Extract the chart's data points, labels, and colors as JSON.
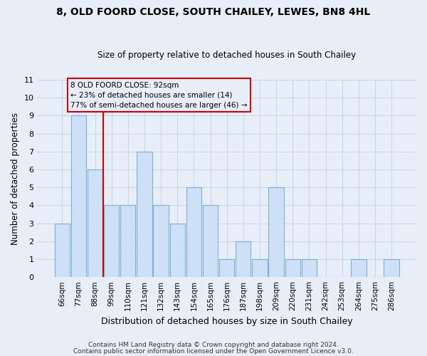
{
  "title": "8, OLD FOORD CLOSE, SOUTH CHAILEY, LEWES, BN8 4HL",
  "subtitle": "Size of property relative to detached houses in South Chailey",
  "xlabel": "Distribution of detached houses by size in South Chailey",
  "ylabel": "Number of detached properties",
  "bar_labels": [
    "66sqm",
    "77sqm",
    "88sqm",
    "99sqm",
    "110sqm",
    "121sqm",
    "132sqm",
    "143sqm",
    "154sqm",
    "165sqm",
    "176sqm",
    "187sqm",
    "198sqm",
    "209sqm",
    "220sqm",
    "231sqm",
    "242sqm",
    "253sqm",
    "264sqm",
    "275sqm",
    "286sqm"
  ],
  "bar_values": [
    3,
    9,
    6,
    4,
    4,
    7,
    4,
    3,
    5,
    4,
    1,
    2,
    1,
    5,
    1,
    1,
    0,
    0,
    1,
    0,
    1
  ],
  "bar_color": "#cde0f5",
  "bar_edge_color": "#7bafd4",
  "vline_after_index": 2,
  "vline_color": "#cc0000",
  "ylim_max": 11,
  "annotation_title": "8 OLD FOORD CLOSE: 92sqm",
  "annotation_line1": "← 23% of detached houses are smaller (14)",
  "annotation_line2": "77% of semi-detached houses are larger (46) →",
  "annotation_box_edge": "#cc0000",
  "grid_color": "#c8d8ea",
  "footer1": "Contains HM Land Registry data © Crown copyright and database right 2024.",
  "footer2": "Contains public sector information licensed under the Open Government Licence v3.0.",
  "bg_color": "#e8eef8"
}
